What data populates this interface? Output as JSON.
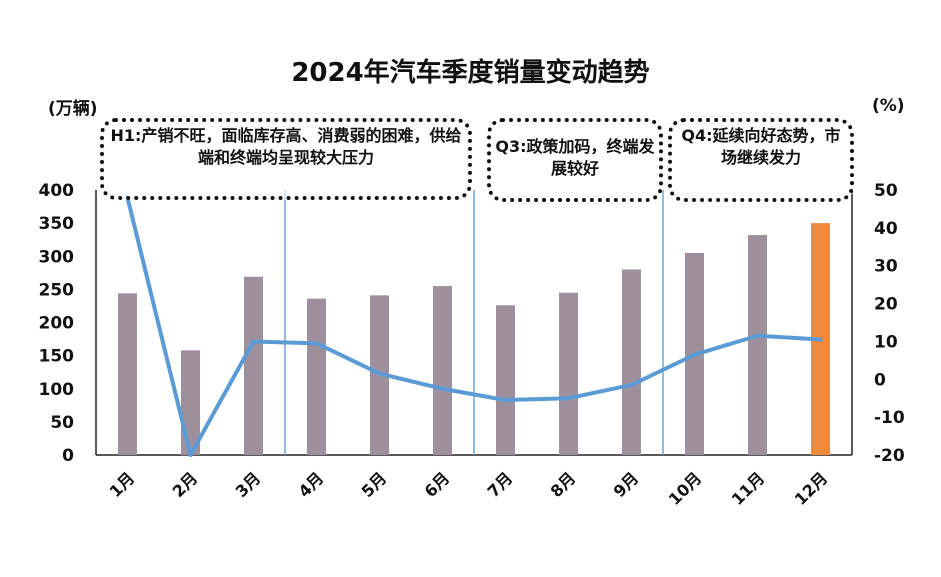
{
  "chart_data": {
    "type": "bar",
    "title": "2024年汽车季度销量变动趋势",
    "left_unit": "(万辆)",
    "right_unit": "(%)",
    "categories": [
      "1月",
      "2月",
      "3月",
      "4月",
      "5月",
      "6月",
      "7月",
      "8月",
      "9月",
      "10月",
      "11月",
      "12月"
    ],
    "series": [
      {
        "axis": "left",
        "values": [
          244,
          158,
          269,
          236,
          241,
          255,
          226,
          245,
          280,
          305,
          332,
          350
        ],
        "color": "#9e8f9d",
        "highlight_color": "#f08a3a",
        "highlight_index": 11
      },
      {
        "axis": "right",
        "type": "line",
        "values": [
          48,
          -20,
          10,
          9.5,
          1.5,
          -2.5,
          -5.5,
          -5,
          -1.5,
          6.5,
          11.5,
          10.5
        ],
        "color": "#5b9bd5"
      }
    ],
    "y_left": {
      "min": 0,
      "max": 400,
      "ticks": [
        0,
        50,
        100,
        150,
        200,
        250,
        300,
        350,
        400
      ]
    },
    "y_right": {
      "min": -20,
      "max": 50,
      "ticks": [
        -20,
        -10,
        0,
        10,
        20,
        30,
        40,
        50
      ]
    },
    "period_dividers_after": [
      3,
      6,
      9
    ],
    "annotations": {
      "h1": "H1:产销不旺，面临库存高、消费弱的困难，供给端和终端均呈现较大压力",
      "q3": "Q3:政策加码，终端发展较好",
      "q4": "Q4:延续向好态势，市场继续发力"
    }
  }
}
